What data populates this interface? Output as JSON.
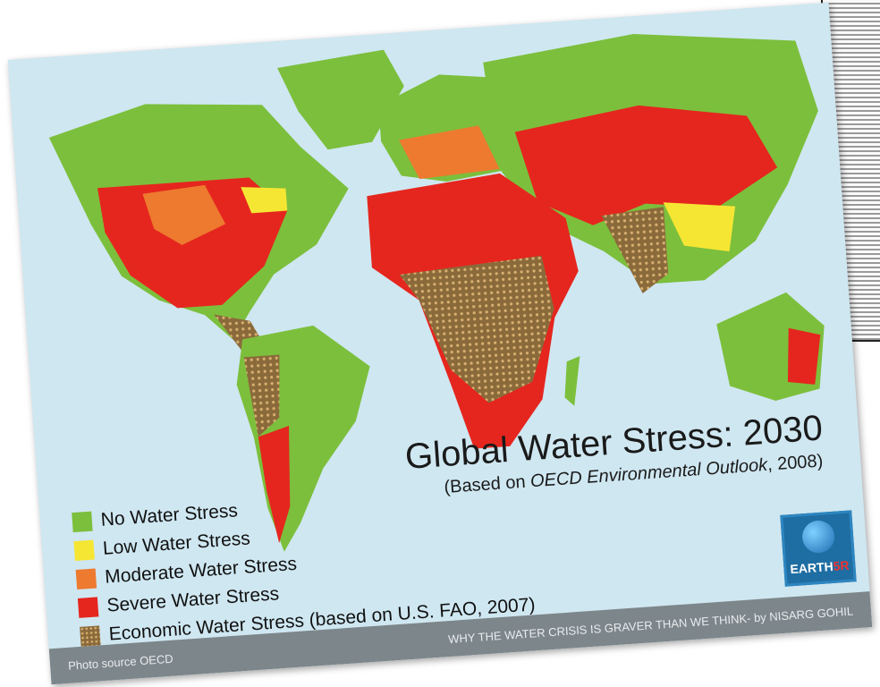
{
  "title": "Global Water Stress: 2030",
  "subtitle": {
    "before": "(Based on ",
    "italic": "OECD Environmental Outlook",
    "after": ", 2008)"
  },
  "legend": [
    {
      "label": "No Water Stress"
    },
    {
      "label": "Low Water Stress"
    },
    {
      "label": "Moderate Water Stress"
    },
    {
      "label": "Severe Water Stress"
    },
    {
      "label": "Economic Water Stress",
      "note": "(based on U.S. FAO, 2007)"
    }
  ],
  "logo": {
    "main": "EARTH",
    "accent": "5R"
  },
  "footer": {
    "left": "Photo source OECD",
    "right": "WHY THE WATER CRISIS IS GRAVER THAN WE THINK- by NISARG GOHIL"
  }
}
